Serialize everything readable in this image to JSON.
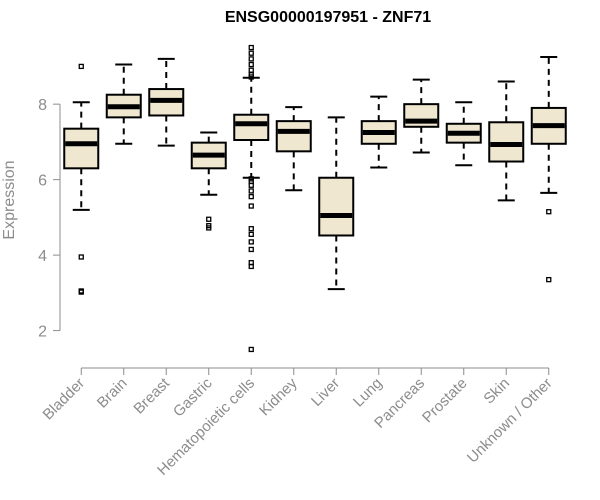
{
  "chart_data": {
    "type": "boxplot",
    "title": "ENSG00000197951 - ZNF71",
    "xlabel": "",
    "ylabel": "Expression",
    "ylim": [
      1.3,
      9.7
    ],
    "yticks": [
      2,
      4,
      6,
      8
    ],
    "grid": false,
    "categories": [
      "Bladder",
      "Brain",
      "Breast",
      "Gastric",
      "Hematopoietic cells",
      "Kidney",
      "Liver",
      "Lung",
      "Pancreas",
      "Prostate",
      "Skin",
      "Unknown / Other"
    ],
    "boxes": [
      {
        "min": 5.2,
        "q1": 6.3,
        "median": 6.95,
        "q3": 7.35,
        "max": 8.05,
        "outliers": [
          9.0,
          3.95,
          3.05,
          3.02
        ]
      },
      {
        "min": 6.95,
        "q1": 7.65,
        "median": 7.93,
        "q3": 8.25,
        "max": 9.05,
        "outliers": []
      },
      {
        "min": 6.9,
        "q1": 7.7,
        "median": 8.1,
        "q3": 8.4,
        "max": 9.2,
        "outliers": []
      },
      {
        "min": 5.6,
        "q1": 6.3,
        "median": 6.65,
        "q3": 6.98,
        "max": 7.25,
        "outliers": [
          4.95,
          4.78,
          4.72
        ]
      },
      {
        "min": 6.05,
        "q1": 7.05,
        "median": 7.48,
        "q3": 7.72,
        "max": 8.7,
        "outliers": [
          9.5,
          9.35,
          9.2,
          9.05,
          8.9,
          8.78,
          8.72,
          6.02,
          5.95,
          5.85,
          5.7,
          5.55,
          5.3,
          4.7,
          4.55,
          4.35,
          4.15,
          3.8,
          3.7,
          1.5
        ]
      },
      {
        "min": 5.72,
        "q1": 6.75,
        "median": 7.28,
        "q3": 7.55,
        "max": 7.92,
        "outliers": []
      },
      {
        "min": 3.1,
        "q1": 4.52,
        "median": 5.05,
        "q3": 6.05,
        "max": 7.65,
        "outliers": []
      },
      {
        "min": 6.32,
        "q1": 6.95,
        "median": 7.25,
        "q3": 7.55,
        "max": 8.2,
        "outliers": []
      },
      {
        "min": 6.72,
        "q1": 7.4,
        "median": 7.55,
        "q3": 8.0,
        "max": 8.65,
        "outliers": []
      },
      {
        "min": 6.38,
        "q1": 6.98,
        "median": 7.23,
        "q3": 7.48,
        "max": 8.05,
        "outliers": []
      },
      {
        "min": 5.45,
        "q1": 6.48,
        "median": 6.93,
        "q3": 7.52,
        "max": 8.6,
        "outliers": []
      },
      {
        "min": 5.65,
        "q1": 6.95,
        "median": 7.43,
        "q3": 7.9,
        "max": 9.25,
        "outliers": [
          5.15,
          3.35
        ]
      }
    ],
    "colors": {
      "box_fill": "#efe7cf",
      "box_stroke": "#000000",
      "axis": "#8c8c8c"
    }
  }
}
